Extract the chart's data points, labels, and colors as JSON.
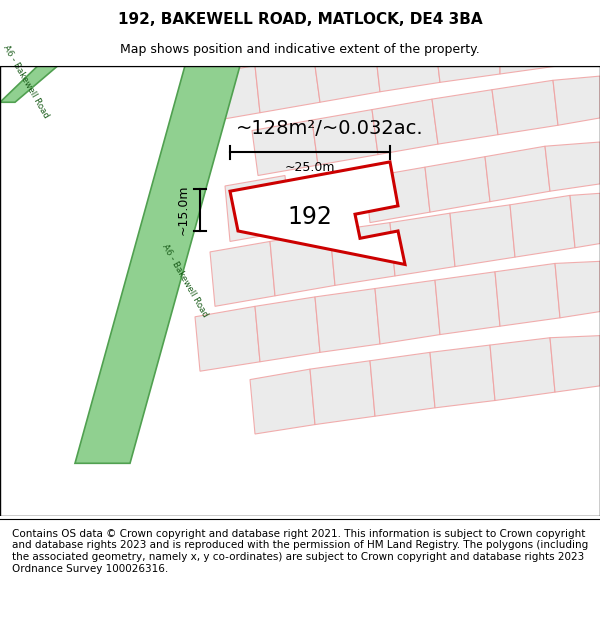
{
  "title": "192, BAKEWELL ROAD, MATLOCK, DE4 3BA",
  "subtitle": "Map shows position and indicative extent of the property.",
  "footer": "Contains OS data © Crown copyright and database right 2021. This information is subject to Crown copyright and database rights 2023 and is reproduced with the permission of HM Land Registry. The polygons (including the associated geometry, namely x, y co-ordinates) are subject to Crown copyright and database rights 2023 Ordnance Survey 100026316.",
  "area_text": "~128m²/~0.032ac.",
  "property_label": "192",
  "dim_width": "~25.0m",
  "dim_height": "~15.0m",
  "road_label": "A6 - Bakewell Road",
  "road_color": "#90d090",
  "road_border_color": "#50a050",
  "plot_polygon_color": "#cc0000",
  "cadastral_color": "#f0a0a0",
  "cadastral_fill": "#e8e8e8",
  "title_fontsize": 11,
  "subtitle_fontsize": 9,
  "footer_fontsize": 7.5
}
